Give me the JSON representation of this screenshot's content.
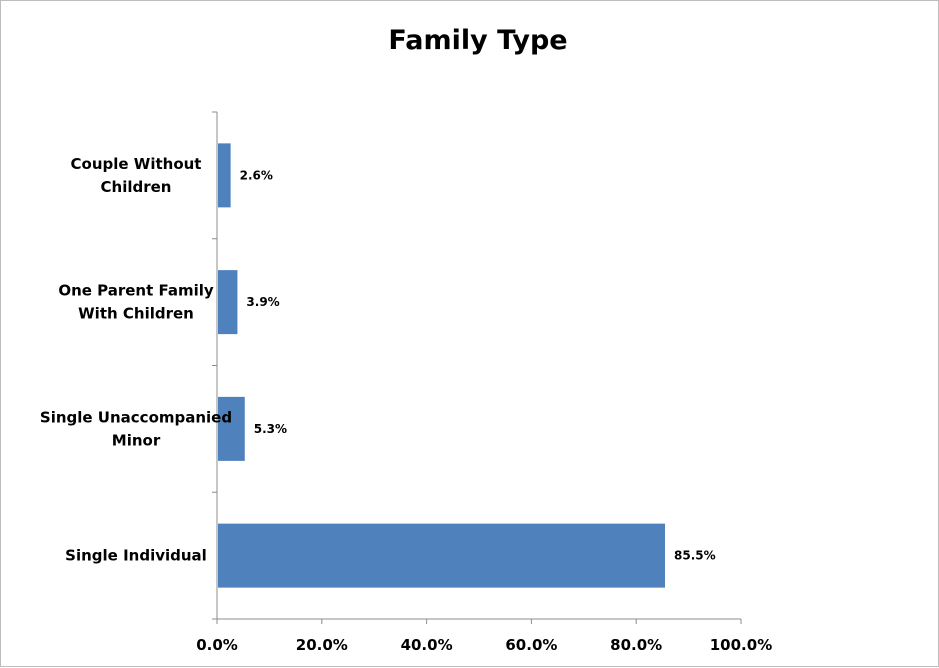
{
  "chart_data": {
    "type": "bar",
    "orientation": "horizontal",
    "title": "Family Type",
    "categories": [
      [
        "Couple Without",
        "Children"
      ],
      [
        "One Parent Family",
        "With Children"
      ],
      [
        "Single Unaccompanied",
        "Minor"
      ],
      [
        "Single Individual"
      ]
    ],
    "values": [
      2.6,
      3.9,
      5.3,
      85.5
    ],
    "data_labels": [
      "2.6%",
      "3.9%",
      "5.3%",
      "85.5%"
    ],
    "xlim": [
      0,
      100
    ],
    "xticks": [
      0,
      20,
      40,
      60,
      80,
      100
    ],
    "xtick_labels": [
      "0.0%",
      "20.0%",
      "40.0%",
      "60.0%",
      "80.0%",
      "100.0%"
    ],
    "xlabel": "",
    "ylabel": "",
    "grid": false,
    "legend": "none",
    "bar_color": "#4f81bd"
  }
}
